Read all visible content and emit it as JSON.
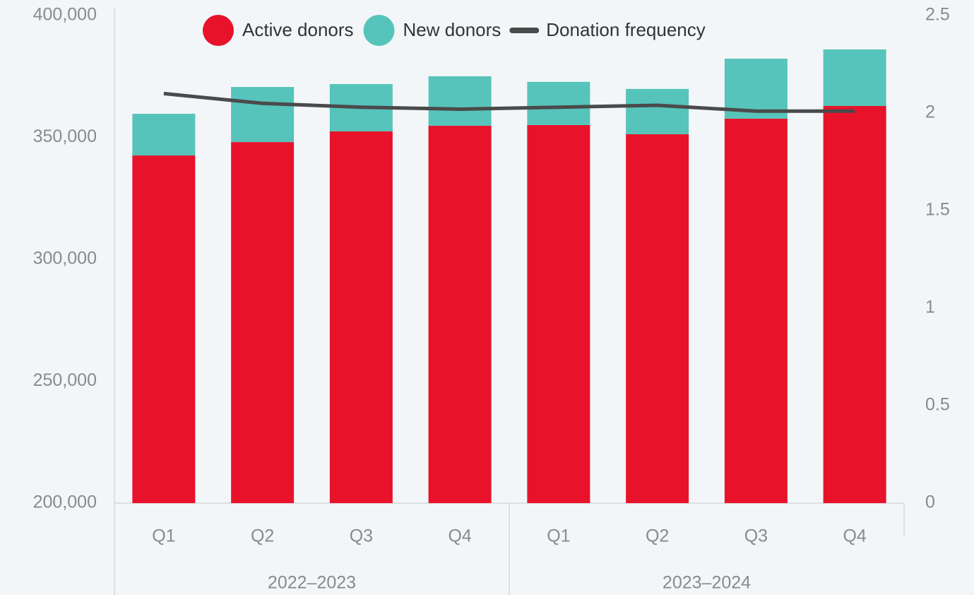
{
  "chart_data": {
    "type": "bar",
    "stacked": true,
    "categories": [
      "Q1",
      "Q2",
      "Q3",
      "Q4",
      "Q1",
      "Q2",
      "Q3",
      "Q4"
    ],
    "category_groups": [
      "2022–2023",
      "2023–2024"
    ],
    "series": [
      {
        "name": "Active donors",
        "color": "#e8132a",
        "values": [
          342600,
          348100,
          352500,
          354800,
          355100,
          351300,
          357700,
          362900
        ]
      },
      {
        "name": "New donors",
        "color": "#56c4bb",
        "values": [
          17100,
          22600,
          19400,
          20300,
          17700,
          18600,
          24600,
          23200
        ]
      },
      {
        "name": "Donation frequency",
        "color": "#4a4a4a",
        "type": "line",
        "axis": "y2",
        "values": [
          2.1,
          2.05,
          2.03,
          2.02,
          2.03,
          2.04,
          2.01,
          2.01
        ]
      }
    ],
    "ylim": [
      200000,
      400000
    ],
    "yticks": [
      {
        "value": 200000,
        "label": "200,000"
      },
      {
        "value": 250000,
        "label": "250,000"
      },
      {
        "value": 300000,
        "label": "300,000"
      },
      {
        "value": 350000,
        "label": "350,000"
      },
      {
        "value": 400000,
        "label": "400,000"
      }
    ],
    "y2lim": [
      0,
      2.5
    ],
    "y2ticks": [
      0,
      0.5,
      1,
      1.5,
      2,
      2.5
    ],
    "legend": "top"
  }
}
